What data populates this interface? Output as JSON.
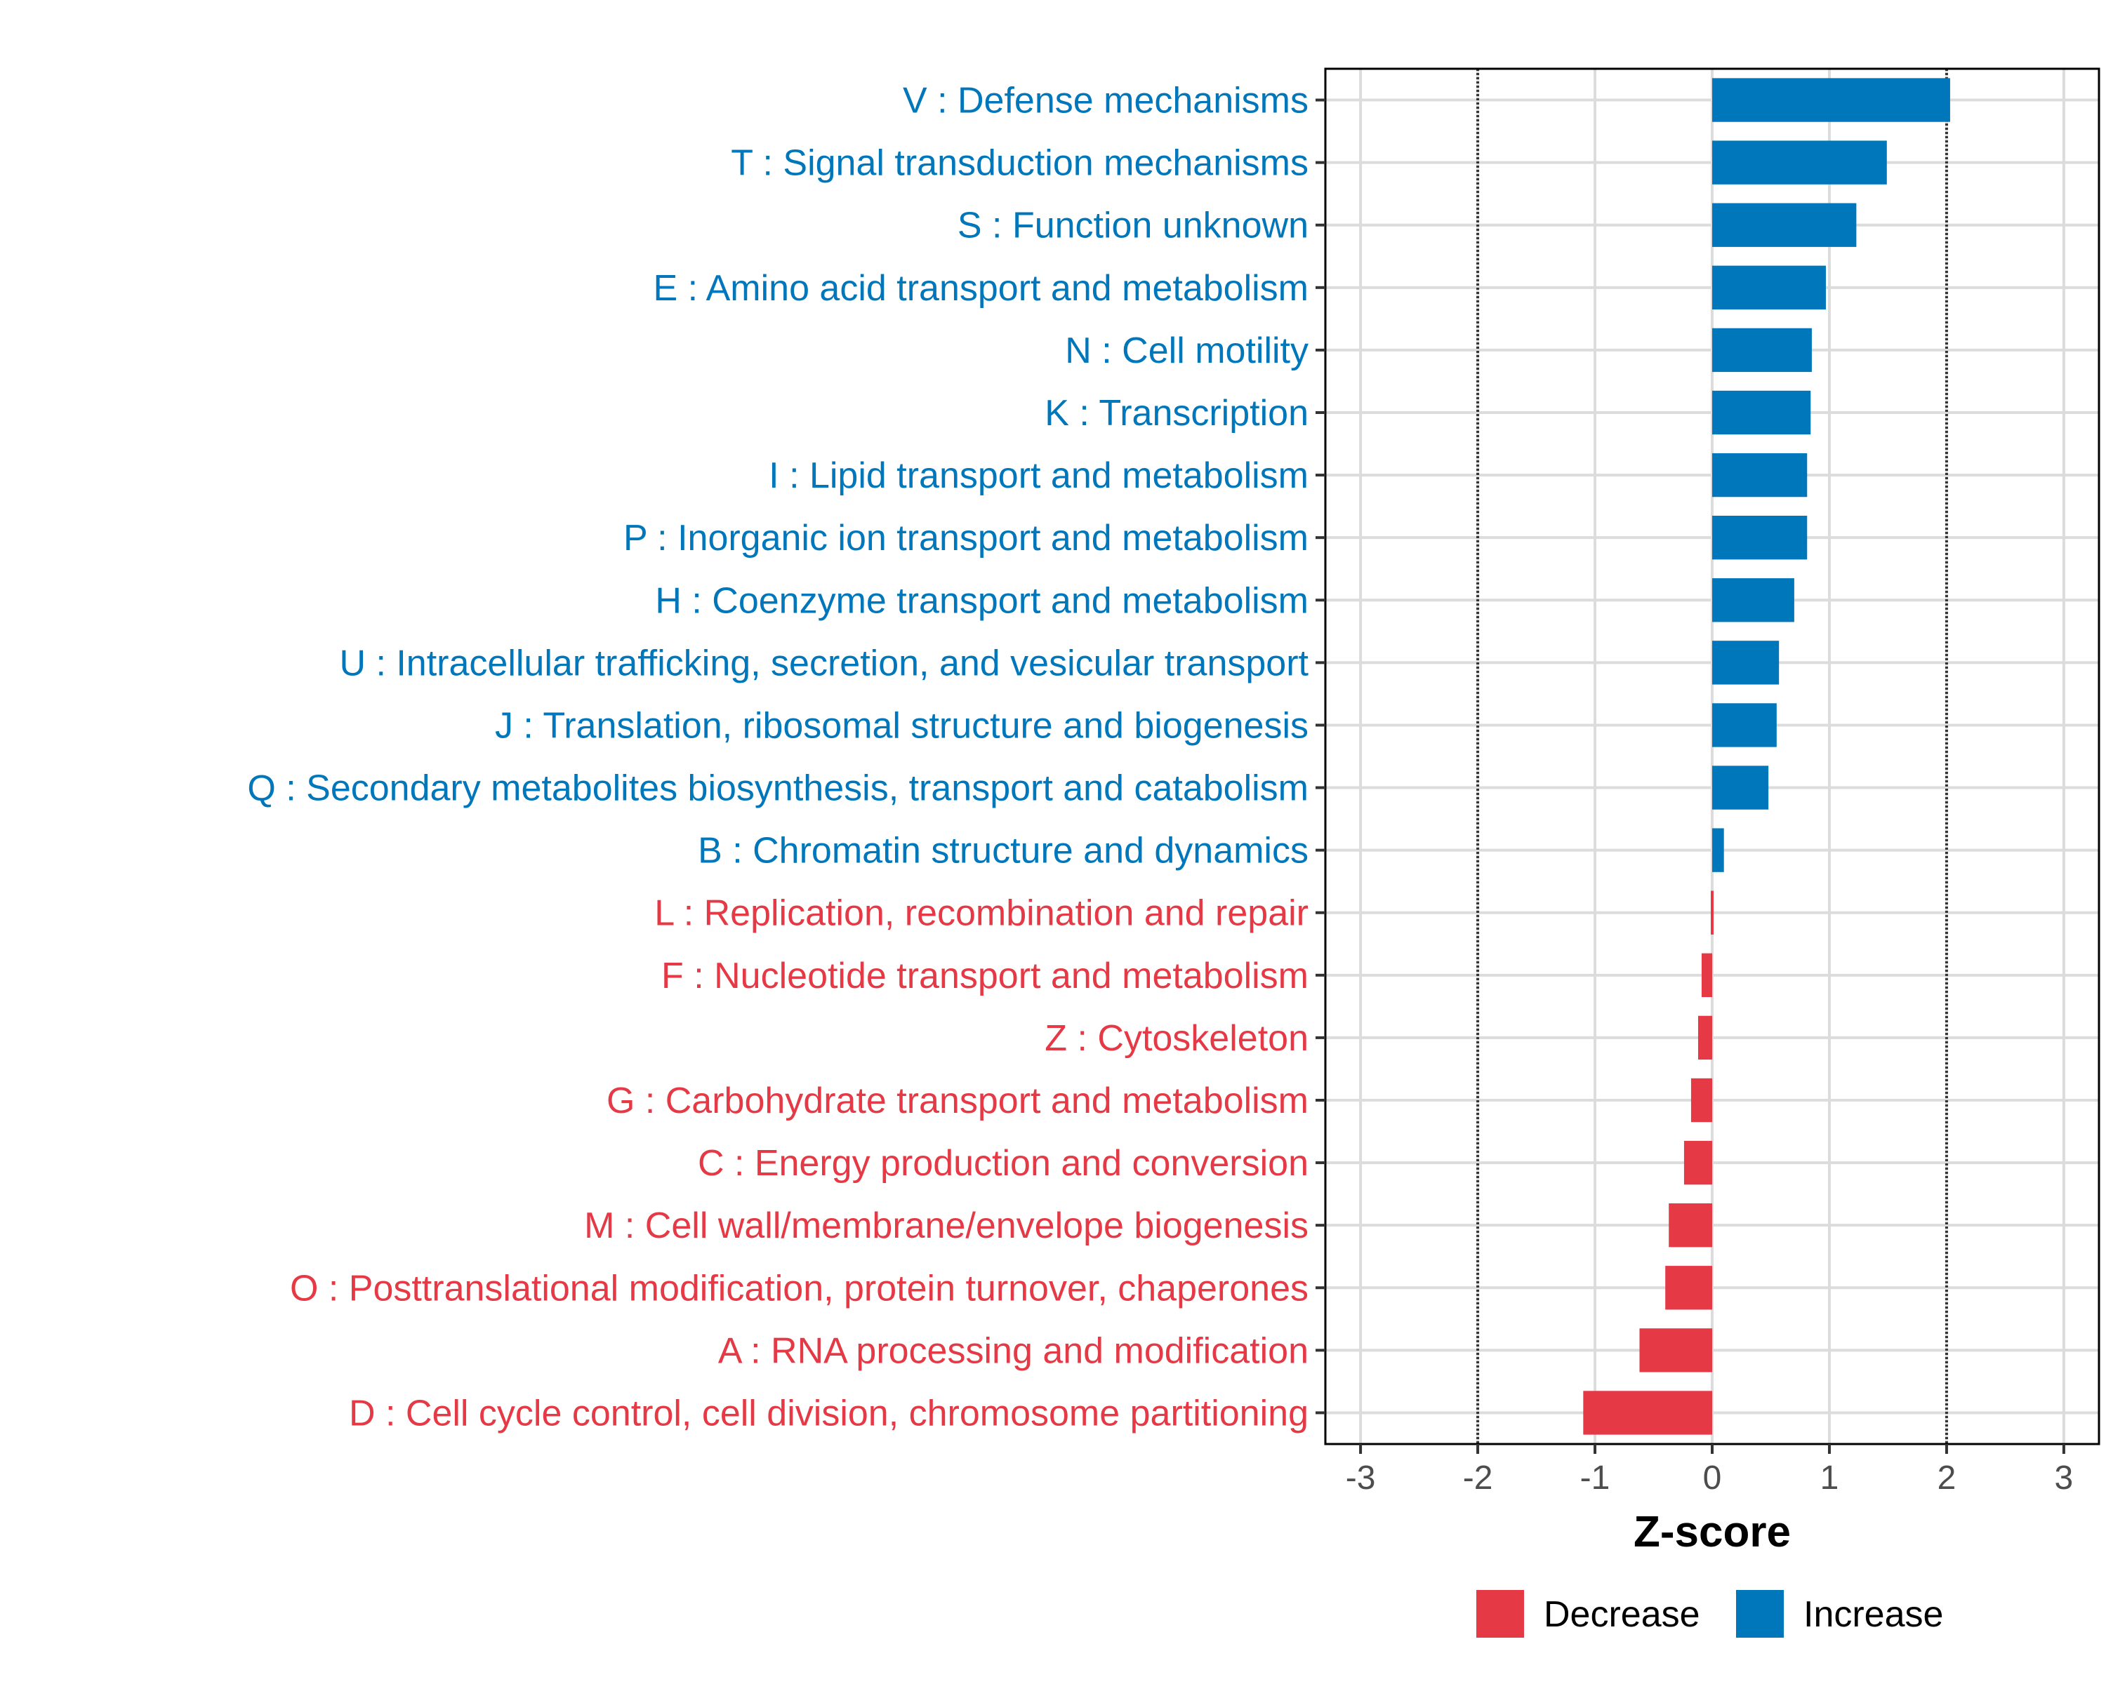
{
  "chart_data": {
    "type": "bar",
    "orientation": "horizontal",
    "title": "",
    "xlabel": "Z-score",
    "ylabel": "",
    "xlim": [
      -3.3,
      3.3
    ],
    "xticks": [
      -3,
      -2,
      -1,
      0,
      1,
      2,
      3
    ],
    "xtick_labels": [
      "-3",
      "-2",
      "-1",
      "0",
      "1",
      "2",
      "3"
    ],
    "threshold_lines": [
      -2,
      2
    ],
    "grid": true,
    "categories": [
      "V : Defense mechanisms",
      "T : Signal transduction mechanisms",
      "S : Function unknown",
      "E : Amino acid transport and metabolism",
      "N : Cell motility",
      "K : Transcription",
      "I : Lipid transport and metabolism",
      "P : Inorganic ion transport and metabolism",
      "H : Coenzyme transport and metabolism",
      "U : Intracellular trafficking, secretion, and vesicular transport",
      "J : Translation, ribosomal structure and biogenesis",
      "Q : Secondary metabolites biosynthesis, transport and catabolism",
      "B : Chromatin structure and dynamics",
      "L : Replication, recombination and repair",
      "F : Nucleotide transport and metabolism",
      "Z : Cytoskeleton",
      "G : Carbohydrate transport and metabolism",
      "C : Energy production and conversion",
      "M : Cell wall/membrane/envelope biogenesis",
      "O : Posttranslational modification, protein turnover, chaperones",
      "A : RNA processing and modification",
      "D : Cell cycle control, cell division, chromosome partitioning"
    ],
    "values": [
      2.03,
      1.49,
      1.23,
      0.97,
      0.85,
      0.84,
      0.81,
      0.81,
      0.7,
      0.57,
      0.55,
      0.48,
      0.1,
      0.0,
      -0.09,
      -0.12,
      -0.18,
      -0.24,
      -0.37,
      -0.4,
      -0.62,
      -1.1
    ],
    "groups": [
      "Increase",
      "Increase",
      "Increase",
      "Increase",
      "Increase",
      "Increase",
      "Increase",
      "Increase",
      "Increase",
      "Increase",
      "Increase",
      "Increase",
      "Increase",
      "Decrease",
      "Decrease",
      "Decrease",
      "Decrease",
      "Decrease",
      "Decrease",
      "Decrease",
      "Decrease",
      "Decrease"
    ],
    "legend": {
      "position": "bottom-right",
      "entries": [
        {
          "label": "Decrease",
          "color": "#e63946"
        },
        {
          "label": "Increase",
          "color": "#0077bb"
        }
      ]
    },
    "colors": {
      "Increase": "#0077bb",
      "Decrease": "#e63946"
    }
  }
}
